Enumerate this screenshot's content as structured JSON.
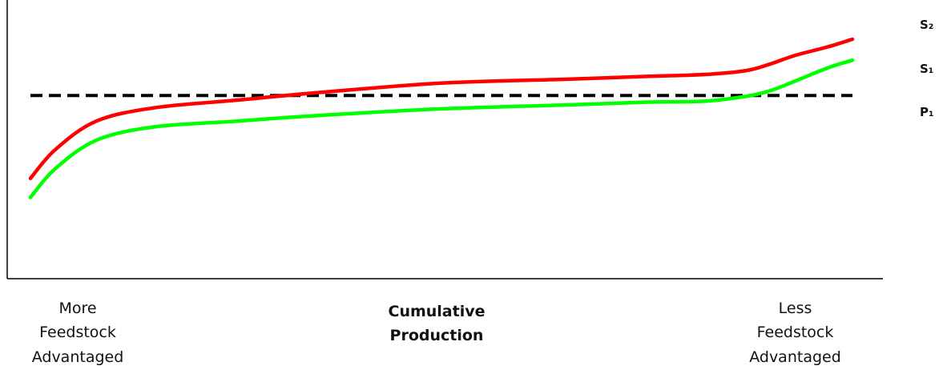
{
  "chart_data": {
    "type": "line",
    "xlabel": "Cumulative Production",
    "xlabel_lines": [
      "Cumulative",
      "Production"
    ],
    "x_left_label_lines": [
      "More",
      "Feedstock",
      "Advantaged"
    ],
    "x_right_label_lines": [
      "Less",
      "Feedstock",
      "Advantaged"
    ],
    "xlim": [
      0,
      100
    ],
    "ylim": [
      0,
      100
    ],
    "grid": false,
    "series": [
      {
        "name": "S₂",
        "color": "#ff0000",
        "style": "solid",
        "x": [
          0,
          3,
          8,
          15,
          25,
          35,
          50,
          65,
          75,
          82,
          87,
          90,
          93,
          97,
          100
        ],
        "y": [
          27,
          42,
          57,
          64,
          68,
          72,
          77,
          79,
          80.5,
          81.5,
          83.5,
          87,
          91.5,
          96,
          100
        ]
      },
      {
        "name": "S₁",
        "color": "#00ff00",
        "style": "solid",
        "x": [
          0,
          3,
          8,
          15,
          25,
          35,
          50,
          65,
          75,
          82,
          87,
          90,
          93,
          97,
          100
        ],
        "y": [
          17,
          32,
          47,
          54,
          57,
          60,
          63.5,
          65.5,
          67,
          67.5,
          70,
          73,
          78,
          85,
          89
        ]
      },
      {
        "name": "P₁",
        "color": "#000000",
        "style": "dashed",
        "x": [
          0,
          100
        ],
        "y": [
          70.5,
          70.5
        ]
      }
    ]
  }
}
